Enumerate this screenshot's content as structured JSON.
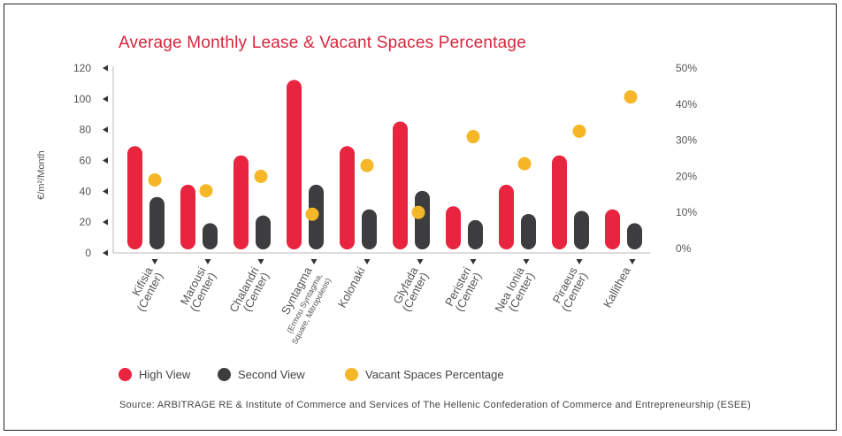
{
  "chart_data": {
    "type": "bar",
    "title": "Average Monthly Lease & Vacant Spaces Percentage",
    "ylabel": "€/m²/Month",
    "ylim": [
      0,
      120
    ],
    "yticks": [
      "0",
      "20",
      "40",
      "60",
      "80",
      "100",
      "120"
    ],
    "y2lim": [
      0,
      50
    ],
    "y2ticks": [
      "0%",
      "10%",
      "20%",
      "30%",
      "40%",
      "50%"
    ],
    "categories": [
      [
        "Kifisia",
        "(Center)"
      ],
      [
        "Marousi",
        "(Center)"
      ],
      [
        "Chalandri",
        "(Center)"
      ],
      [
        "Syntagma",
        "(Ermou Syntagma,",
        "Square, Mitropoleos)"
      ],
      [
        "Kolonaki"
      ],
      [
        "Glyfada",
        "(Center)"
      ],
      [
        "Peristeri",
        "(Center)"
      ],
      [
        "Nea Ionia",
        "(Center)"
      ],
      [
        "Piraeus",
        "(Center)"
      ],
      [
        "Kallithea"
      ]
    ],
    "series": [
      {
        "name": "High View",
        "color": "#e8243f",
        "axis": "left",
        "values": [
          67,
          42,
          61,
          110,
          67,
          83,
          28,
          42,
          61,
          26
        ]
      },
      {
        "name": "Second View",
        "color": "#3d3d3f",
        "axis": "left",
        "values": [
          34,
          17,
          22,
          42,
          26,
          38,
          19,
          23,
          25,
          17
        ]
      },
      {
        "name": "Vacant Spaces Percentage",
        "color": "#f5b728",
        "axis": "right",
        "values": [
          19,
          16,
          20,
          9.5,
          23,
          10,
          31,
          23.5,
          32.5,
          42
        ]
      }
    ]
  },
  "legend": {
    "high": "High View",
    "second": "Second View",
    "vacant": "Vacant Spaces Percentage"
  },
  "source": "Source: ARBITRAGE RE & Institute of Commerce and Services of The Hellenic Confederation of Commerce and Entrepreneurship (ESEE)"
}
